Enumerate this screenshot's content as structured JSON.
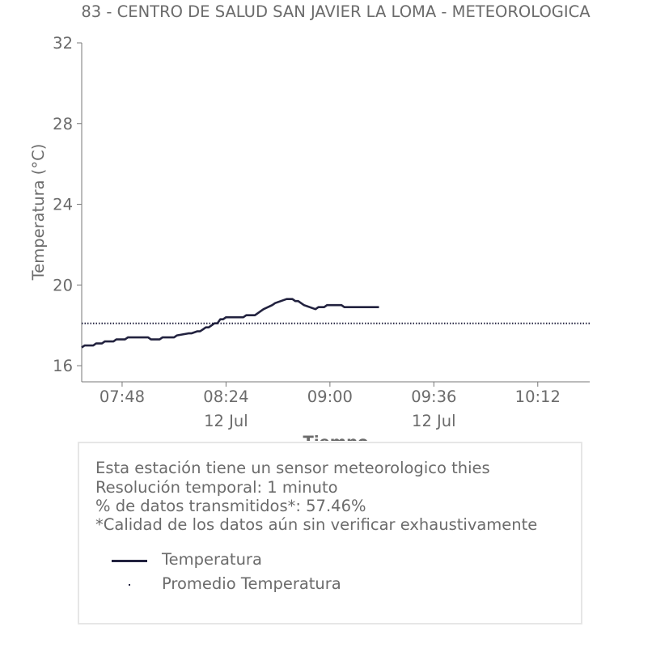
{
  "chart_data": {
    "type": "line",
    "title": "83 - CENTRO DE SALUD SAN JAVIER LA LOMA - METEOROLOGICA",
    "xlabel": "Tiempo",
    "ylabel": "Temperatura (°C)",
    "ylim": [
      15.2,
      32
    ],
    "xlim": [
      "07:34",
      "10:30"
    ],
    "x_ticks": [
      {
        "t": "07:48",
        "label": "07:48",
        "sub": ""
      },
      {
        "t": "08:24",
        "label": "08:24",
        "sub": "12 Jul"
      },
      {
        "t": "09:00",
        "label": "09:00",
        "sub": ""
      },
      {
        "t": "09:36",
        "label": "09:36",
        "sub": "12 Jul"
      },
      {
        "t": "10:12",
        "label": "10:12",
        "sub": ""
      }
    ],
    "y_ticks": [
      16,
      20,
      24,
      28,
      32
    ],
    "grid": false,
    "series": [
      {
        "name": "Temperatura",
        "style": "solid",
        "color": "#22223f",
        "x": [
          "07:34",
          "07:35",
          "07:38",
          "07:39",
          "07:41",
          "07:42",
          "07:45",
          "07:46",
          "07:49",
          "07:50",
          "07:53",
          "07:57",
          "07:58",
          "08:01",
          "08:02",
          "08:06",
          "08:07",
          "08:11",
          "08:12",
          "08:14",
          "08:15",
          "08:16",
          "08:17",
          "08:18",
          "08:19",
          "08:20",
          "08:21",
          "08:22",
          "08:23",
          "08:24",
          "08:25",
          "08:30",
          "08:31",
          "08:34",
          "08:35",
          "08:36",
          "08:37",
          "08:40",
          "08:41",
          "08:45",
          "08:46",
          "08:47",
          "08:48",
          "08:49",
          "08:50",
          "08:51",
          "08:53",
          "08:55",
          "08:56",
          "08:57",
          "08:58",
          "08:59",
          "09:00",
          "09:01",
          "09:04",
          "09:05",
          "09:11",
          "09:12",
          "09:17"
        ],
        "y": [
          16.9,
          17.0,
          17.0,
          17.1,
          17.1,
          17.2,
          17.2,
          17.3,
          17.3,
          17.4,
          17.4,
          17.4,
          17.3,
          17.3,
          17.4,
          17.4,
          17.5,
          17.6,
          17.6,
          17.7,
          17.7,
          17.8,
          17.9,
          17.9,
          18.0,
          18.1,
          18.1,
          18.3,
          18.3,
          18.4,
          18.4,
          18.4,
          18.5,
          18.5,
          18.6,
          18.7,
          18.8,
          19.0,
          19.1,
          19.3,
          19.3,
          19.3,
          19.2,
          19.2,
          19.1,
          19.0,
          18.9,
          18.8,
          18.9,
          18.9,
          18.9,
          19.0,
          19.0,
          19.0,
          19.0,
          18.9,
          18.9,
          18.9,
          18.9
        ]
      },
      {
        "name": "Promedio Temperatura",
        "style": "dotted",
        "color": "#22223f",
        "x": [
          "07:34",
          "10:30"
        ],
        "y": [
          18.1,
          18.1
        ]
      }
    ]
  },
  "info": {
    "lines": [
      "Esta estación tiene un sensor meteorologico thies",
      "Resolución temporal: 1 minuto",
      "% de datos transmitidos*: 57.46%",
      "*Calidad de los datos aún sin verificar exhaustivamente"
    ]
  },
  "colors": {
    "text": "#6b6b6b",
    "line": "#22223f",
    "axis": "#777777",
    "border": "#e6e6e6"
  }
}
